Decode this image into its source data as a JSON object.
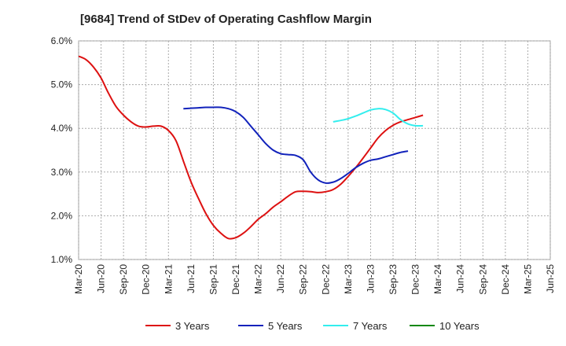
{
  "chart_data": {
    "type": "line",
    "title": "[9684]  Trend of StDev of Operating Cashflow Margin",
    "xlabel": "",
    "ylabel": "",
    "ylim": [
      1.0,
      6.0
    ],
    "yticks": [
      "1.0%",
      "2.0%",
      "3.0%",
      "4.0%",
      "5.0%",
      "6.0%"
    ],
    "xticks": [
      "Mar-20",
      "Jun-20",
      "Sep-20",
      "Dec-20",
      "Mar-21",
      "Jun-21",
      "Sep-21",
      "Dec-21",
      "Mar-22",
      "Jun-22",
      "Sep-22",
      "Dec-22",
      "Mar-23",
      "Jun-23",
      "Sep-23",
      "Dec-23",
      "Mar-24",
      "Jun-24",
      "Sep-24",
      "Dec-24",
      "Mar-25",
      "Jun-25"
    ],
    "grid": true,
    "legend_position": "bottom",
    "series": [
      {
        "name": "3 Years",
        "color": "#dd1111",
        "points": [
          [
            0,
            5.65
          ],
          [
            1,
            5.57
          ],
          [
            2,
            5.4
          ],
          [
            3,
            5.15
          ],
          [
            4,
            4.8
          ],
          [
            5,
            4.5
          ],
          [
            6,
            4.3
          ],
          [
            7,
            4.15
          ],
          [
            8,
            4.05
          ],
          [
            9,
            4.03
          ],
          [
            10,
            4.05
          ],
          [
            11,
            4.05
          ],
          [
            12,
            3.95
          ],
          [
            13,
            3.72
          ],
          [
            14,
            3.25
          ],
          [
            15,
            2.78
          ],
          [
            16,
            2.4
          ],
          [
            17,
            2.05
          ],
          [
            18,
            1.78
          ],
          [
            19,
            1.6
          ],
          [
            20,
            1.48
          ],
          [
            21,
            1.5
          ],
          [
            22,
            1.6
          ],
          [
            23,
            1.75
          ],
          [
            24,
            1.92
          ],
          [
            25,
            2.05
          ],
          [
            26,
            2.2
          ],
          [
            27,
            2.32
          ],
          [
            28,
            2.45
          ],
          [
            29,
            2.55
          ],
          [
            30,
            2.56
          ],
          [
            31,
            2.55
          ],
          [
            32,
            2.53
          ],
          [
            33,
            2.55
          ],
          [
            34,
            2.6
          ],
          [
            35,
            2.72
          ],
          [
            36,
            2.9
          ],
          [
            37,
            3.1
          ],
          [
            38,
            3.32
          ],
          [
            39,
            3.55
          ],
          [
            40,
            3.78
          ],
          [
            41,
            3.95
          ],
          [
            42,
            4.07
          ],
          [
            43,
            4.15
          ],
          [
            44,
            4.2
          ],
          [
            45,
            4.25
          ],
          [
            46,
            4.3
          ]
        ]
      },
      {
        "name": "5 Years",
        "color": "#1122bb",
        "points": [
          [
            14,
            4.45
          ],
          [
            15,
            4.46
          ],
          [
            16,
            4.47
          ],
          [
            17,
            4.48
          ],
          [
            18,
            4.48
          ],
          [
            19,
            4.48
          ],
          [
            20,
            4.45
          ],
          [
            21,
            4.38
          ],
          [
            22,
            4.25
          ],
          [
            23,
            4.05
          ],
          [
            24,
            3.85
          ],
          [
            25,
            3.65
          ],
          [
            26,
            3.5
          ],
          [
            27,
            3.42
          ],
          [
            28,
            3.4
          ],
          [
            29,
            3.38
          ],
          [
            30,
            3.28
          ],
          [
            31,
            3.0
          ],
          [
            32,
            2.82
          ],
          [
            33,
            2.75
          ],
          [
            34,
            2.77
          ],
          [
            35,
            2.85
          ],
          [
            36,
            2.97
          ],
          [
            37,
            3.1
          ],
          [
            38,
            3.2
          ],
          [
            39,
            3.27
          ],
          [
            40,
            3.3
          ],
          [
            41,
            3.35
          ],
          [
            42,
            3.4
          ],
          [
            43,
            3.45
          ],
          [
            44,
            3.48
          ]
        ]
      },
      {
        "name": "7 Years",
        "color": "#33eeee",
        "points": [
          [
            34,
            4.15
          ],
          [
            35,
            4.18
          ],
          [
            36,
            4.22
          ],
          [
            37,
            4.28
          ],
          [
            38,
            4.35
          ],
          [
            39,
            4.42
          ],
          [
            40,
            4.45
          ],
          [
            41,
            4.43
          ],
          [
            42,
            4.35
          ],
          [
            43,
            4.2
          ],
          [
            44,
            4.1
          ],
          [
            45,
            4.06
          ],
          [
            46,
            4.06
          ]
        ]
      },
      {
        "name": "10 Years",
        "color": "#118811",
        "points": []
      }
    ]
  }
}
